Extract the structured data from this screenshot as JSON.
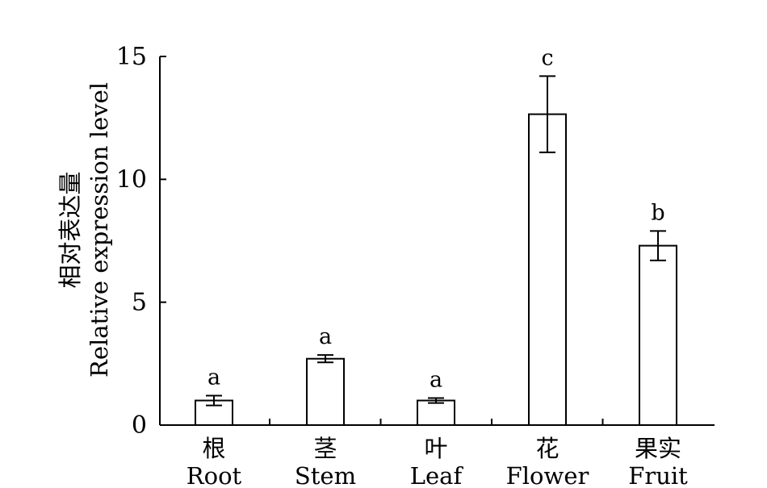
{
  "chart_data": {
    "type": "bar",
    "title": "",
    "ylabel_cn": "相对表达量",
    "ylabel_en": "Relative expression level",
    "xlabel": "",
    "ylim": [
      0,
      15
    ],
    "yticks": [
      0,
      5,
      10,
      15
    ],
    "categories": [
      {
        "cn": "根",
        "en": "Root"
      },
      {
        "cn": "茎",
        "en": "Stem"
      },
      {
        "cn": "叶",
        "en": "Leaf"
      },
      {
        "cn": "花",
        "en": "Flower"
      },
      {
        "cn": "果实",
        "en": "Fruit"
      }
    ],
    "values": [
      1.0,
      2.7,
      1.0,
      12.65,
      7.3
    ],
    "errors": [
      0.2,
      0.15,
      0.1,
      1.55,
      0.6
    ],
    "significance": [
      "a",
      "a",
      "a",
      "c",
      "b"
    ],
    "grid": false,
    "legend": "none",
    "colors": {
      "bar_fill": "#ffffff",
      "bar_stroke": "#000000"
    }
  }
}
